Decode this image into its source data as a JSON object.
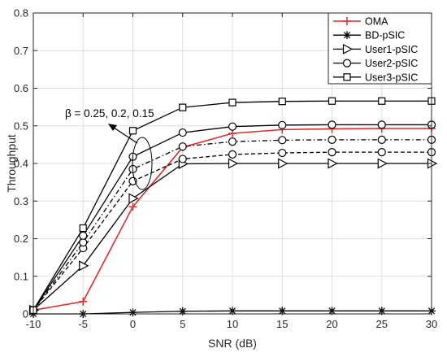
{
  "chart_data": {
    "type": "line",
    "xlabel": "SNR (dB)",
    "ylabel": "Throughput",
    "xlim": [
      -10,
      30
    ],
    "ylim": [
      0,
      0.8
    ],
    "xticks": [
      "-10",
      "-5",
      "0",
      "5",
      "10",
      "15",
      "20",
      "25",
      "30"
    ],
    "yticks": [
      "0",
      "0.1",
      "0.2",
      "0.3",
      "0.4",
      "0.5",
      "0.6",
      "0.7",
      "0.8"
    ],
    "x": [
      -10,
      -5,
      0,
      5,
      10,
      15,
      20,
      25,
      30
    ],
    "grid": true,
    "legend_position": "top-right",
    "legend": [
      "OMA",
      "BD-pSIC",
      "User1-pSIC",
      "User2-pSIC",
      "User3-pSIC"
    ],
    "annotation": "β = 0.25, 0.2, 0.15",
    "series": [
      {
        "name": "OMA",
        "color": "#e32b2b",
        "marker": "plus",
        "style": "solid",
        "values": [
          0.01,
          0.033,
          0.285,
          0.443,
          0.48,
          0.49,
          0.492,
          0.493,
          0.493
        ]
      },
      {
        "name": "BD-pSIC",
        "color": "#000000",
        "marker": "asterisk",
        "style": "solid",
        "values": [
          0.0,
          0.0,
          0.004,
          0.007,
          0.008,
          0.008,
          0.008,
          0.008,
          0.008
        ]
      },
      {
        "name": "User1-pSIC",
        "color": "#000000",
        "marker": "triangle-right",
        "style": "solid",
        "values": [
          0.01,
          0.128,
          0.307,
          0.399,
          0.4,
          0.4,
          0.4,
          0.4,
          0.4
        ]
      },
      {
        "name": "",
        "color": "#000000",
        "marker": "circle",
        "style": "dashed",
        "values": [
          0.01,
          0.175,
          0.353,
          0.412,
          0.424,
          0.428,
          0.43,
          0.43,
          0.43
        ]
      },
      {
        "name": "",
        "color": "#000000",
        "marker": "circle",
        "style": "dashdot",
        "values": [
          0.01,
          0.19,
          0.385,
          0.445,
          0.458,
          0.462,
          0.463,
          0.463,
          0.463
        ]
      },
      {
        "name": "User2-pSIC",
        "color": "#000000",
        "marker": "circle",
        "style": "solid",
        "values": [
          0.01,
          0.208,
          0.418,
          0.482,
          0.498,
          0.502,
          0.503,
          0.503,
          0.503
        ]
      },
      {
        "name": "User3-pSIC",
        "color": "#000000",
        "marker": "square",
        "style": "solid",
        "values": [
          0.01,
          0.228,
          0.487,
          0.549,
          0.562,
          0.565,
          0.566,
          0.566,
          0.566
        ]
      }
    ]
  }
}
